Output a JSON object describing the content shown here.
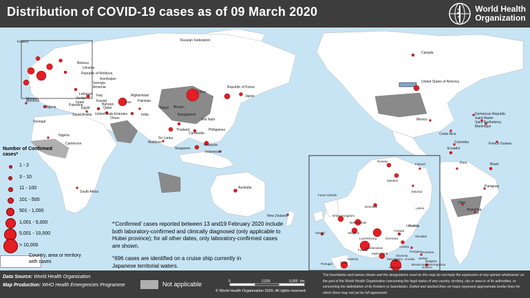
{
  "header": {
    "title": "Distribution of COVID-19 cases as of 09 March 2020",
    "org_name_line1": "World Health",
    "org_name_line2": "Organization"
  },
  "legend": {
    "title": "Number of Confirmed cases*",
    "classes": [
      "1 - 2",
      "3 - 10",
      "11 - 100",
      "101 - 500",
      "501 - 1,000",
      "1,001 - 5,000",
      "5,001 - 10,000",
      "> 10,000"
    ],
    "country_with_cases_line1": "Country, area or territory",
    "country_with_cases_line2": "with cases",
    "dot_color": "#e31e24"
  },
  "notes": {
    "confirmed": "*'Confirmed' cases reported between 13 and19 February 2020 include both laboratory-confirmed and clinically diagnosed (only applicable to Hubei province); for all other dates, only laboratory-confirmed cases are shown.",
    "cruise": "°696 cases are identified on a cruise ship currently in Japanese territorial waters."
  },
  "footer": {
    "data_source_label": "Data Source:",
    "data_source": "World Health Organization",
    "map_production_label": "Map Production:",
    "map_production": "WHO Health Emergencies Programme",
    "not_applicable": "Not applicable",
    "copyright": "© World Health Organization 2020, All rights reserved.",
    "scale_labels": [
      "0",
      "2,500",
      "5,000"
    ],
    "scale_unit": "km",
    "disclaimer": "The boundaries and names shown and the designations used on this map do not imply the expression of any opinion whatsoever on the part of the World Health Organization concerning the legal status of any country, territory, city or area or of its authorities, or concerning the delimitation of its frontiers or boundaries. Dotted and dashed lines on maps represent approximate border lines for which there may not yet be full agreement."
  },
  "map_labels": [
    "Iceland",
    "Russian Federation",
    "Canada",
    "United States of America",
    "China",
    "Republic of Korea",
    "Japan",
    "India",
    "Iran",
    "Nepal",
    "Bhutan",
    "Bangladesh",
    "Viet Nam",
    "Thailand",
    "Cambodia",
    "Philippines",
    "Malaysia",
    "Singapore",
    "Indonesia",
    "Sri Lanka",
    "Maldives",
    "Australia",
    "New Zealand",
    "Egypt",
    "Algeria",
    "Morocco",
    "Tunisia",
    "Nigeria",
    "Senegal",
    "Cameroon",
    "Togo",
    "South Africa",
    "Mexico",
    "Dominican Republic",
    "Saint Martin",
    "Saint Barthelemy",
    "Martinique",
    "Costa Rica",
    "Colombia",
    "Ecuador",
    "Peru",
    "Brazil",
    "Paraguay",
    "Argentina",
    "Chile",
    "French Guiana",
    "Georgia",
    "Armenia",
    "Azerbaijan",
    "Afghanistan",
    "Pakistan",
    "Iraq",
    "Kuwait",
    "Bahrain",
    "Qatar",
    "United Arab Emirates",
    "Oman",
    "Saudi Arabia",
    "Jordan",
    "Lebanon",
    "Israel",
    "Palestine",
    "Republic of Moldova",
    "Ukraine",
    "Belarus",
    "Monaco",
    "Norway",
    "Sweden",
    "Finland",
    "Denmark",
    "Estonia",
    "Latvia",
    "Lithuania",
    "Poland",
    "Germany",
    "Netherlands",
    "Belgium",
    "Luxembourg",
    "France",
    "Switzerland",
    "Liechtenstein",
    "Austria",
    "Czechia",
    "Slovakia",
    "Hungary",
    "Slovenia",
    "Croatia",
    "Bosnia and Herzegovina",
    "Serbia",
    "Romania",
    "Bulgaria",
    "North Macedonia",
    "Albania",
    "Greece",
    "San Marino",
    "Andorra",
    "Spain",
    "Portugal",
    "Italy",
    "Holy See",
    "Malta",
    "Gibraltar",
    "United Kingdom",
    "Ireland",
    "Faroe Islands"
  ]
}
